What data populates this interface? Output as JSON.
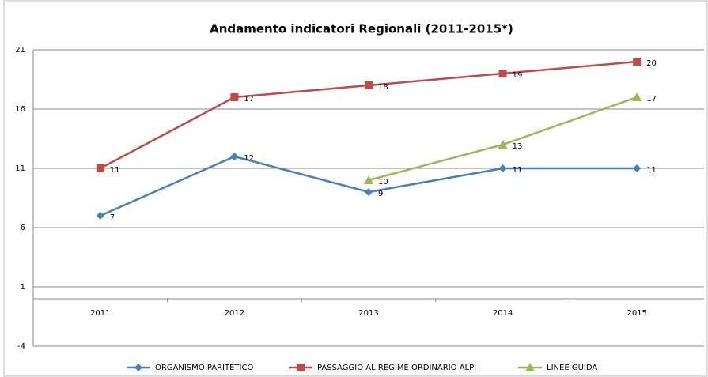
{
  "chart_data": {
    "type": "line",
    "title": "Andamento indicatori Regionali (2011-2015*)",
    "categories": [
      "2011",
      "2012",
      "2013",
      "2014",
      "2015"
    ],
    "series": [
      {
        "name": "ORGANISMO PARITETICO",
        "color": "#4a7ebb",
        "marker": "diamond",
        "values": [
          7,
          12,
          9,
          11,
          11
        ]
      },
      {
        "name": "PASSAGGIO AL REGIME ORDINARIO ALPI",
        "color": "#be4b48",
        "marker": "square",
        "values": [
          11,
          17,
          18,
          19,
          20
        ]
      },
      {
        "name": "LINEE GUIDA",
        "color": "#98b954",
        "marker": "triangle",
        "values": [
          null,
          null,
          10,
          13,
          17
        ]
      }
    ],
    "ylim": [
      -4,
      21
    ],
    "yticks": [
      -4,
      1,
      6,
      11,
      16,
      21
    ],
    "grid": true,
    "legend": "bottom"
  }
}
